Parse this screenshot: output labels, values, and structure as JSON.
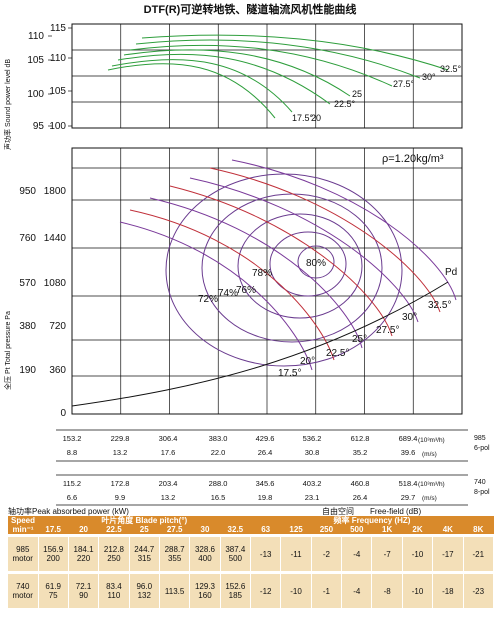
{
  "chart_data": [
    {
      "type": "line",
      "title": "DTF(R)可逆转地铁、隧道轴流风机性能曲线",
      "ylabel": "声功率 Sound power level dB",
      "ylim": [
        95,
        115
      ],
      "yticks_left": [
        "110",
        "105",
        "100",
        "95"
      ],
      "yticks_right": [
        "115",
        "110",
        "105",
        "100"
      ],
      "series": [
        {
          "name": "17.5°",
          "x": [
            6.2,
            7.5,
            9,
            10.6
          ],
          "y": [
            111.2,
            110.3,
            108.8,
            107.1
          ]
        },
        {
          "name": "20",
          "x": [
            6.0,
            7.4,
            9,
            10.8
          ],
          "y": [
            111.6,
            110.8,
            109.3,
            107.5
          ]
        },
        {
          "name": "22.5",
          "x": [
            5.8,
            7.3,
            9.1,
            11.0
          ],
          "y": [
            112.0,
            111.2,
            109.8,
            108.4
          ]
        },
        {
          "name": "25",
          "x": [
            5.6,
            7.2,
            9.1,
            11.2
          ],
          "y": [
            112.4,
            111.7,
            110.3,
            108.9
          ]
        },
        {
          "name": "27.5",
          "x": [
            5.4,
            7.1,
            9.2,
            11.5
          ],
          "y": [
            112.8,
            112.2,
            110.9,
            109.6
          ]
        },
        {
          "name": "30",
          "x": [
            5.2,
            7.0,
            9.2,
            11.8
          ],
          "y": [
            113.2,
            112.7,
            111.5,
            110.2
          ]
        },
        {
          "name": "32.5",
          "x": [
            5.0,
            6.9,
            9.3,
            12.2
          ],
          "y": [
            113.6,
            113.2,
            112.1,
            111.0
          ]
        }
      ],
      "blade_labels": [
        "17.5°",
        "20",
        "22.5°",
        "25",
        "27.5°",
        "30°",
        "32.5°"
      ]
    },
    {
      "type": "line",
      "ylabel": "全压 Pt Total pressure Pa",
      "density": "ρ=1.20kg/m³",
      "ylim_985": [
        0,
        1800
      ],
      "ylim_740": [
        0,
        950
      ],
      "yticks_985": [
        "1800",
        "1440",
        "1080",
        "720",
        "360",
        "0"
      ],
      "yticks_740": [
        "950",
        "760",
        "570",
        "380",
        "190"
      ],
      "blade_angles": [
        "17.5°",
        "20°",
        "22.5°",
        "25°",
        "27.5°",
        "30°",
        "32.5°"
      ],
      "efficiency_labels": [
        "80%",
        "78%",
        "76%",
        "74%",
        "72%"
      ],
      "system_curve_label": "Pd",
      "pd_curve": {
        "x": [
          8.8,
          13.2,
          17.6,
          22.0,
          26.4,
          30.8,
          35.2,
          39.6,
          44.0
        ],
        "y": [
          20,
          90,
          140,
          200,
          250,
          320,
          390,
          470,
          580
        ]
      }
    }
  ],
  "title": "DTF(R)可逆转地铁、隧道轴流风机性能曲线",
  "rho_label": "ρ=1.20kg/m³",
  "axis": {
    "x985_flow": [
      "153.2",
      "229.8",
      "306.4",
      "383.0",
      "429.6",
      "536.2",
      "612.8",
      "689.4"
    ],
    "x985_unit1": "(10³m³/h)",
    "x985_speed": "985",
    "x985_vel": [
      "8.8",
      "13.2",
      "17.6",
      "22.0",
      "26.4",
      "30.8",
      "35.2",
      "39.6"
    ],
    "x985_unit2": "(m/s)",
    "x985_poles": "6-pol",
    "x740_flow": [
      "115.2",
      "172.8",
      "203.4",
      "288.0",
      "345.6",
      "403.2",
      "460.8",
      "518.4"
    ],
    "x740_unit1": "(10³m³/h)",
    "x740_speed": "740",
    "x740_vel": [
      "6.6",
      "9.9",
      "13.2",
      "16.5",
      "19.8",
      "23.1",
      "26.4",
      "29.7"
    ],
    "x740_unit2": "(m/s)",
    "x740_poles": "8-pol"
  },
  "table_caption": {
    "left": "轴功率Peak absorbed power (kW)",
    "mid": "自由空间",
    "right": "Free-field (dB)"
  },
  "table": {
    "header_top": [
      "Speed\nmin⁻¹",
      "叶片角度 Blade pitch(°)",
      "频率 Frequency (HZ)"
    ],
    "pitches": [
      "17.5",
      "20",
      "22.5",
      "25",
      "27.5",
      "30",
      "32.5"
    ],
    "freqs": [
      "63",
      "125",
      "250",
      "500",
      "1K",
      "2K",
      "4K",
      "8K"
    ],
    "rows": [
      {
        "speed": "985\nmotor",
        "pitch": [
          "156.9\n200",
          "184.1\n220",
          "212.8\n250",
          "244.7\n315",
          "288.7\n355",
          "328.6\n400",
          "387.4\n500"
        ],
        "freq": [
          "-13",
          "-11",
          "-2",
          "-4",
          "-7",
          "-10",
          "-17",
          "-21"
        ]
      },
      {
        "speed": "740\nmotor",
        "pitch": [
          "61.9\n75",
          "72.1\n90",
          "83.4\n110",
          "96.0\n132",
          "113.5",
          "129.3\n160",
          "152.6\n185"
        ],
        "freq": [
          "-12",
          "-10",
          "-1",
          "-4",
          "-8",
          "-10",
          "-18",
          "-23"
        ]
      }
    ]
  }
}
